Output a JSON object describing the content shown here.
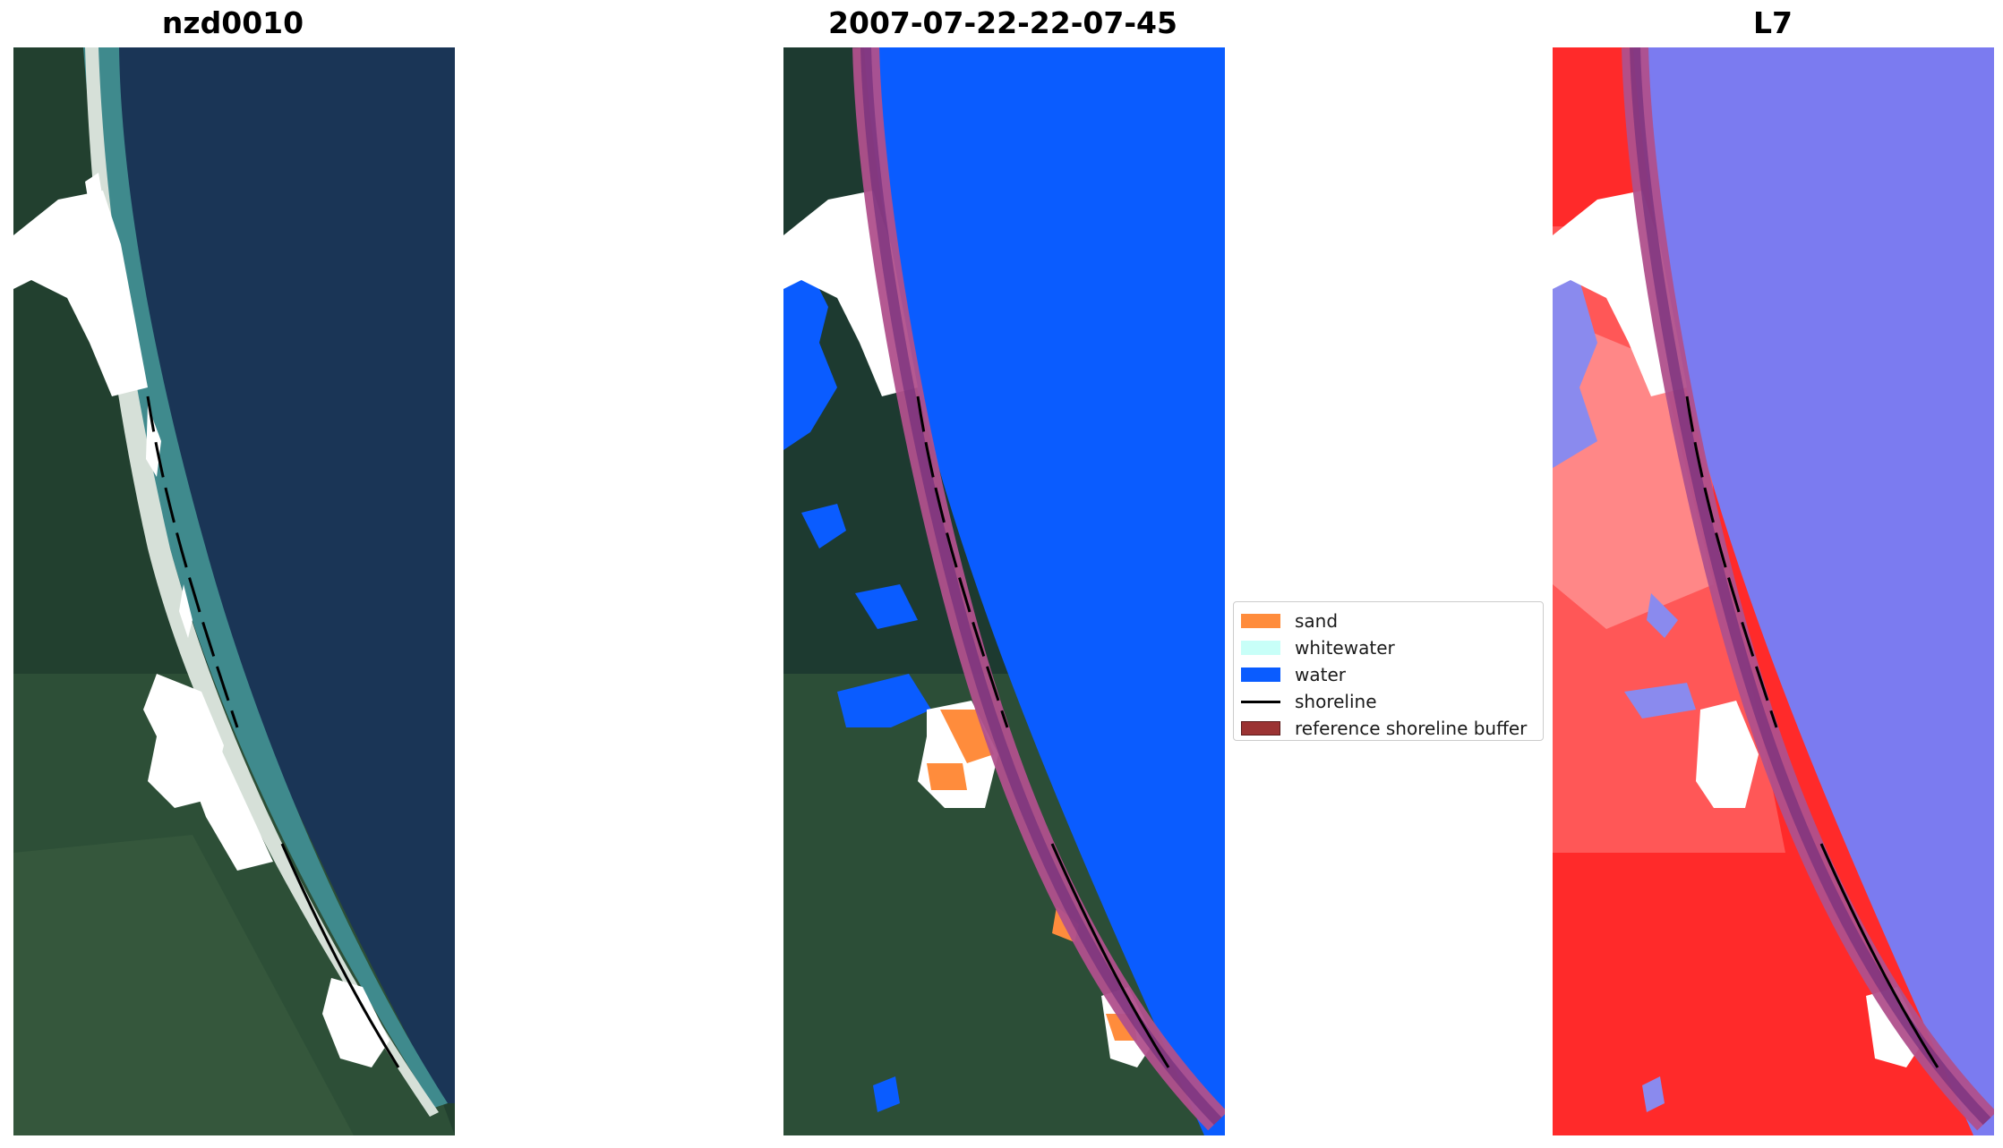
{
  "panels": [
    {
      "title": "nzd0010",
      "kind": "rgb"
    },
    {
      "title": "2007-07-22-22-07-45",
      "kind": "classified"
    },
    {
      "title": "L7",
      "kind": "index"
    }
  ],
  "legend": [
    {
      "label": "sand",
      "color": "#ff8c3c",
      "type": "patch"
    },
    {
      "label": "whitewater",
      "color": "#c8fff8",
      "type": "patch"
    },
    {
      "label": "water",
      "color": "#0a5cff",
      "type": "patch"
    },
    {
      "label": "shoreline",
      "color": "#000000",
      "type": "line"
    },
    {
      "label": "reference shoreline buffer",
      "color": "#9b3333",
      "type": "patch"
    }
  ],
  "colors": {
    "ocean_rgb": "#1a3556",
    "land_rgb": "#1f3b33",
    "surf_rgb": "#3f8a8d",
    "water_class": "#0a5cff",
    "sand_class": "#ff8c3c",
    "buffer": "#b0508c",
    "index_water": "#7b7bf0",
    "index_land": "#ff2a2a"
  }
}
